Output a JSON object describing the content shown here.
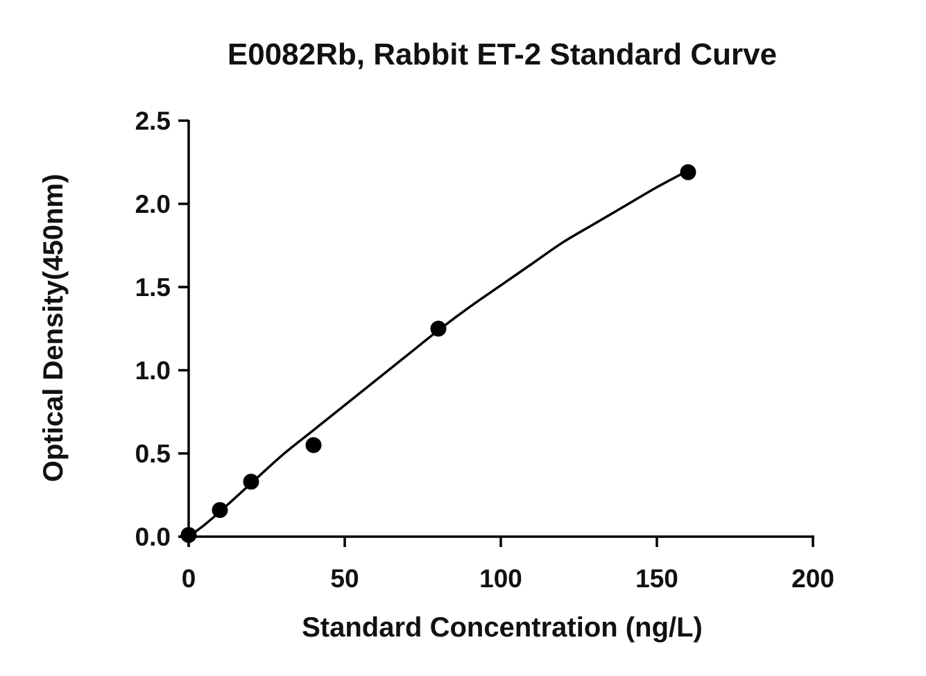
{
  "chart_data": {
    "type": "scatter",
    "title": "E0082Rb, Rabbit ET-2 Standard Curve",
    "xlabel": "Standard Concentration (ng/L)",
    "ylabel": "Optical Density(450nm)",
    "xlim": [
      0,
      200
    ],
    "ylim": [
      0,
      2.5
    ],
    "x_ticks": [
      0,
      50,
      100,
      150,
      200
    ],
    "x_tick_labels": [
      "0",
      "50",
      "100",
      "150",
      "200"
    ],
    "y_ticks": [
      0,
      0.5,
      1.0,
      1.5,
      2.0,
      2.5
    ],
    "y_tick_labels": [
      "0.0",
      "0.5",
      "1.0",
      "1.5",
      "2.0",
      "2.5"
    ],
    "grid": false,
    "legend": "none",
    "series": [
      {
        "type": "scatter",
        "x": [
          0,
          10,
          20,
          40,
          80,
          160
        ],
        "y": [
          0.01,
          0.16,
          0.33,
          0.55,
          1.25,
          2.19
        ]
      },
      {
        "type": "line",
        "x": [
          0,
          5,
          10,
          20,
          30,
          40,
          50,
          60,
          70,
          80,
          90,
          100,
          110,
          120,
          130,
          140,
          150,
          160
        ],
        "y": [
          0.0,
          0.07,
          0.15,
          0.32,
          0.49,
          0.64,
          0.79,
          0.94,
          1.09,
          1.24,
          1.38,
          1.51,
          1.64,
          1.77,
          1.88,
          1.99,
          2.1,
          2.2
        ]
      }
    ],
    "colors": {
      "points": "#000000",
      "curve": "#000000",
      "axes": "#000000"
    }
  }
}
